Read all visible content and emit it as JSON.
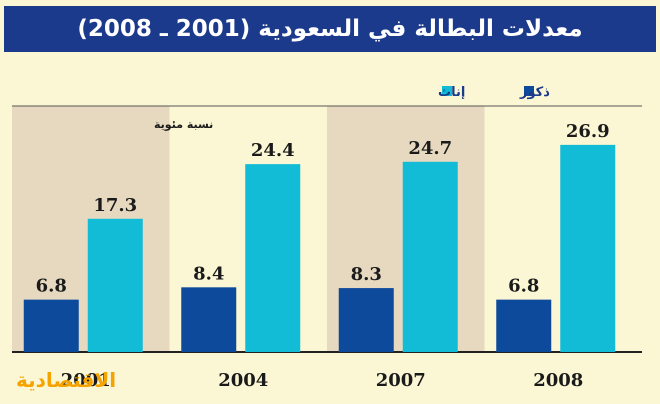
{
  "page": {
    "title": "معدلات البطالة في السعودية (2001 ـ 2008)",
    "brand": "الاقتصادية"
  },
  "colors": {
    "title_bg": "#1c3a8c",
    "page_bg": "#fbf7d4",
    "band_shaded": "#e6d9c0",
    "males": "#0d4a9c",
    "females": "#12bcd6"
  },
  "chart_data": {
    "type": "bar",
    "title": "معدلات البطالة في السعودية (2001 ـ 2008)",
    "ylabel": "نسبة مئوية",
    "categories": [
      "2001",
      "2004",
      "2007",
      "2008"
    ],
    "series": [
      {
        "name": "ذكور",
        "values": [
          6.8,
          8.4,
          8.3,
          6.8
        ]
      },
      {
        "name": "إناث",
        "values": [
          17.3,
          24.4,
          24.7,
          26.9
        ]
      }
    ],
    "legend": "top-right",
    "grid": false
  }
}
